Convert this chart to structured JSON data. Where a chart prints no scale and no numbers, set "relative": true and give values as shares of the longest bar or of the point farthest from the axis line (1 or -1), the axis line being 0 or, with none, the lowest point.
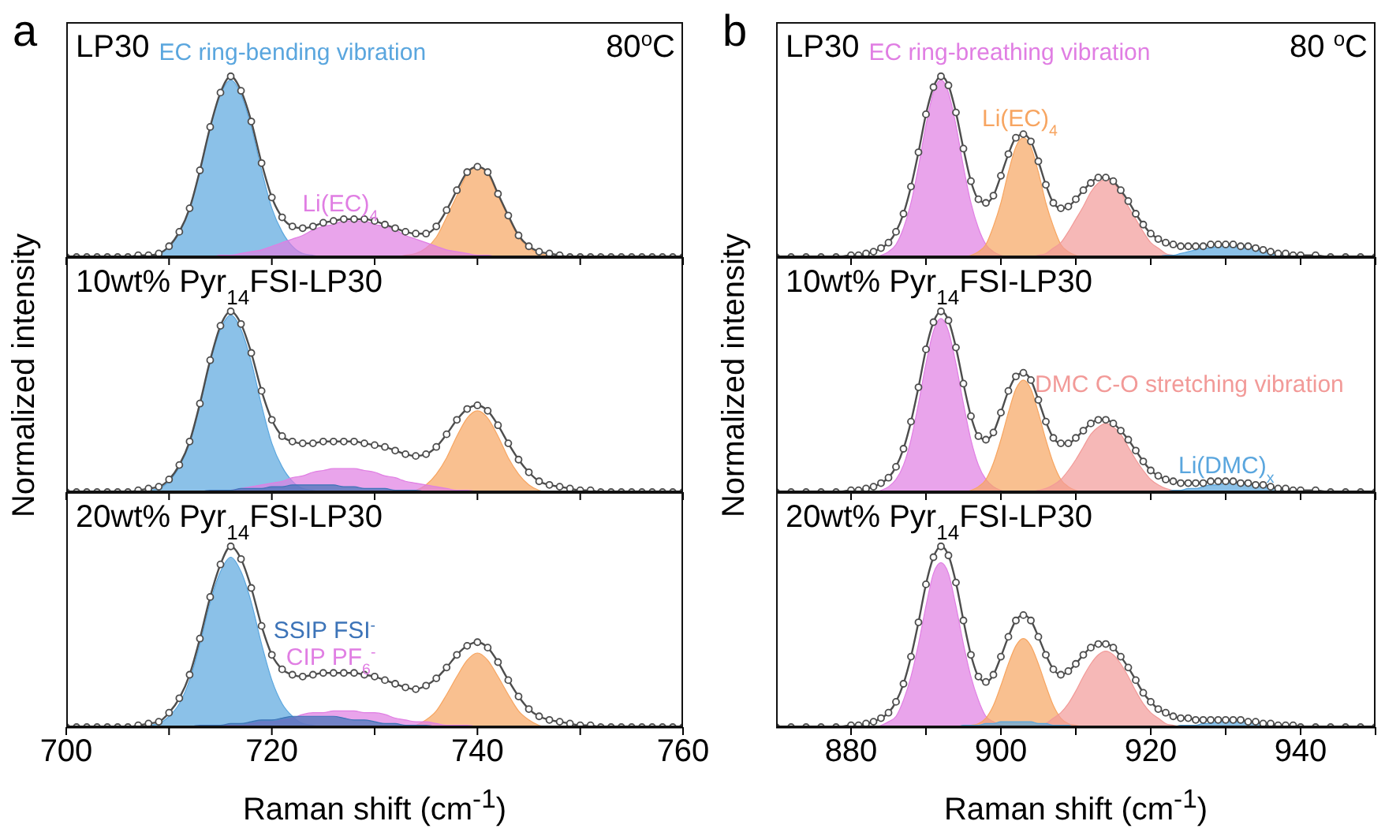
{
  "chart_data": [
    {
      "type": "line",
      "title": "LP30",
      "annotations": [
        "a",
        "80$^{o}$C"
      ],
      "relative": true,
      "tick_labels": false,
      "xlim": [
        700,
        760
      ],
      "xticks": [
        700,
        {
          "value": 710,
          "label": null
        },
        720,
        {
          "value": 730,
          "label": null
        },
        740,
        {
          "value": 750,
          "label": null
        },
        760
      ],
      "x": [
        700,
        701,
        702,
        703,
        704,
        705,
        706,
        707,
        708,
        709,
        710,
        711,
        712,
        713,
        714,
        715,
        716,
        717,
        718,
        719,
        720,
        721,
        722,
        723,
        724,
        725,
        726,
        727,
        728,
        729,
        730,
        731,
        732,
        733,
        734,
        735,
        736,
        737,
        738,
        739,
        740,
        741,
        742,
        743,
        744,
        745,
        746,
        747,
        748,
        749,
        750,
        751,
        752,
        753,
        754,
        755,
        756,
        757,
        758,
        759,
        760
      ],
      "series": [
        {
          "type": "area",
          "name": "EC ring-bending vibration",
          "color": "#5aa6de",
          "x": [
            707,
            708,
            709,
            710,
            711,
            712,
            713,
            714,
            715,
            716,
            717,
            718,
            719,
            720,
            721,
            722,
            723,
            724,
            725
          ],
          "values": [
            0,
            0.01,
            0.02,
            0.06,
            0.14,
            0.27,
            0.48,
            0.72,
            0.9,
            0.98,
            0.9,
            0.72,
            0.48,
            0.27,
            0.14,
            0.06,
            0.02,
            0.01,
            0
          ]
        },
        {
          "type": "area",
          "color": "#f7a561",
          "x": [
            732,
            733,
            734,
            735,
            736,
            737,
            738,
            739,
            740,
            741,
            742,
            743,
            744,
            745,
            746,
            747,
            748
          ],
          "values": [
            0,
            0.01,
            0.02,
            0.05,
            0.11,
            0.22,
            0.34,
            0.46,
            0.5,
            0.46,
            0.34,
            0.22,
            0.11,
            0.05,
            0.02,
            0.01,
            0
          ]
        },
        {
          "type": "area",
          "name": "Li(EC)$_{4}$",
          "color": "#e07ee3",
          "x": [
            713,
            714,
            715,
            716,
            717,
            718,
            719,
            720,
            721,
            722,
            723,
            724,
            725,
            726,
            727,
            728,
            729,
            730,
            731,
            732,
            733,
            734,
            735,
            736,
            737,
            738,
            739,
            740,
            741,
            742,
            743
          ],
          "values": [
            0,
            0,
            0.01,
            0.01,
            0.02,
            0.03,
            0.04,
            0.06,
            0.08,
            0.1,
            0.12,
            0.15,
            0.17,
            0.18,
            0.2,
            0.2,
            0.2,
            0.18,
            0.17,
            0.15,
            0.12,
            0.1,
            0.08,
            0.06,
            0.04,
            0.03,
            0.02,
            0.01,
            0.01,
            0,
            0
          ]
        },
        {
          "color": "#4d4d4d",
          "marker": "circle",
          "values": [
            0,
            0,
            0,
            0,
            0,
            0,
            0,
            0.01,
            0.01,
            0.02,
            0.06,
            0.14,
            0.27,
            0.48,
            0.72,
            0.91,
            1,
            0.92,
            0.75,
            0.52,
            0.33,
            0.22,
            0.17,
            0.16,
            0.17,
            0.19,
            0.2,
            0.21,
            0.21,
            0.21,
            0.2,
            0.18,
            0.16,
            0.14,
            0.13,
            0.13,
            0.17,
            0.26,
            0.37,
            0.47,
            0.5,
            0.47,
            0.35,
            0.23,
            0.12,
            0.06,
            0.03,
            0.02,
            0.01,
            0,
            0,
            0,
            0,
            0,
            0,
            0,
            0,
            0,
            0,
            0,
            0
          ]
        }
      ]
    },
    {
      "type": "line",
      "title": "10wt% Pyr$_{14}$FSI-LP30",
      "ylabel": "Normalized intensity",
      "relative": true,
      "tick_labels": false,
      "xlim": [
        700,
        760
      ],
      "xticks": [
        700,
        {
          "value": 710,
          "label": null
        },
        720,
        {
          "value": 730,
          "label": null
        },
        740,
        {
          "value": 750,
          "label": null
        },
        760
      ],
      "x": [
        700,
        701,
        702,
        703,
        704,
        705,
        706,
        707,
        708,
        709,
        710,
        711,
        712,
        713,
        714,
        715,
        716,
        717,
        718,
        719,
        720,
        721,
        722,
        723,
        724,
        725,
        726,
        727,
        728,
        729,
        730,
        731,
        732,
        733,
        734,
        735,
        736,
        737,
        738,
        739,
        740,
        741,
        742,
        743,
        744,
        745,
        746,
        747,
        748,
        749,
        750,
        751,
        752,
        753,
        754,
        755,
        756,
        757,
        758,
        759,
        760
      ],
      "series": [
        {
          "type": "area",
          "color": "#5aa6de",
          "x": [
            707,
            708,
            709,
            710,
            711,
            712,
            713,
            714,
            715,
            716,
            717,
            718,
            719,
            720,
            721,
            722,
            723,
            724,
            725
          ],
          "values": [
            0,
            0.01,
            0.02,
            0.06,
            0.14,
            0.27,
            0.48,
            0.72,
            0.9,
            0.98,
            0.9,
            0.72,
            0.48,
            0.27,
            0.14,
            0.06,
            0.02,
            0.01,
            0
          ]
        },
        {
          "type": "area",
          "color": "#f7a561",
          "x": [
            732,
            733,
            734,
            735,
            736,
            737,
            738,
            739,
            740,
            741,
            742,
            743,
            744,
            745,
            746,
            747,
            748
          ],
          "values": [
            0,
            0,
            0.01,
            0.04,
            0.1,
            0.19,
            0.31,
            0.41,
            0.45,
            0.41,
            0.31,
            0.19,
            0.1,
            0.04,
            0.01,
            0,
            0
          ]
        },
        {
          "type": "area",
          "color": "#e07ee3",
          "x": [
            714,
            715,
            716,
            717,
            718,
            719,
            720,
            721,
            722,
            723,
            724,
            725,
            726,
            727,
            728,
            729,
            730,
            731,
            732,
            733,
            734,
            735,
            736,
            737,
            738,
            739,
            740
          ],
          "values": [
            0,
            0.01,
            0.01,
            0.02,
            0.03,
            0.04,
            0.05,
            0.06,
            0.08,
            0.09,
            0.11,
            0.12,
            0.13,
            0.13,
            0.13,
            0.12,
            0.11,
            0.09,
            0.08,
            0.06,
            0.05,
            0.04,
            0.03,
            0.02,
            0.01,
            0.01,
            0
          ]
        },
        {
          "type": "area",
          "color": "#3d74b8",
          "x": [
            713,
            714,
            715,
            716,
            717,
            718,
            719,
            720,
            721,
            722,
            723,
            724,
            725,
            726,
            727,
            728,
            729,
            730,
            731,
            732,
            733,
            734,
            735
          ],
          "values": [
            0,
            0.01,
            0.01,
            0.01,
            0.02,
            0.02,
            0.02,
            0.03,
            0.03,
            0.04,
            0.04,
            0.04,
            0.04,
            0.04,
            0.03,
            0.03,
            0.02,
            0.02,
            0.02,
            0.01,
            0.01,
            0.01,
            0
          ]
        },
        {
          "color": "#4d4d4d",
          "marker": "circle",
          "values": [
            0,
            0,
            0,
            0,
            0,
            0,
            0,
            0.01,
            0.02,
            0.03,
            0.07,
            0.15,
            0.28,
            0.49,
            0.73,
            0.92,
            1,
            0.93,
            0.77,
            0.56,
            0.4,
            0.31,
            0.28,
            0.27,
            0.27,
            0.28,
            0.28,
            0.28,
            0.28,
            0.27,
            0.26,
            0.25,
            0.23,
            0.21,
            0.2,
            0.21,
            0.25,
            0.32,
            0.4,
            0.46,
            0.48,
            0.45,
            0.37,
            0.27,
            0.18,
            0.11,
            0.06,
            0.04,
            0.03,
            0.02,
            0.01,
            0.01,
            0,
            0,
            0,
            0,
            0,
            0,
            0,
            0,
            0
          ]
        }
      ]
    },
    {
      "type": "line",
      "title": "20wt%  Pyr$_{14}$FSI-LP30",
      "xlabel": "Raman shift (cm$^{-1}$)",
      "relative": true,
      "xlim": [
        700,
        760
      ],
      "xticks": [
        700,
        {
          "value": 710,
          "label": null
        },
        720,
        {
          "value": 730,
          "label": null
        },
        740,
        {
          "value": 750,
          "label": null
        },
        760
      ],
      "x": [
        700,
        701,
        702,
        703,
        704,
        705,
        706,
        707,
        708,
        709,
        710,
        711,
        712,
        713,
        714,
        715,
        716,
        717,
        718,
        719,
        720,
        721,
        722,
        723,
        724,
        725,
        726,
        727,
        728,
        729,
        730,
        731,
        732,
        733,
        734,
        735,
        736,
        737,
        738,
        739,
        740,
        741,
        742,
        743,
        744,
        745,
        746,
        747,
        748,
        749,
        750,
        751,
        752,
        753,
        754,
        755,
        756,
        757,
        758,
        759,
        760
      ],
      "series": [
        {
          "type": "area",
          "color": "#5aa6de",
          "x": [
            707,
            708,
            709,
            710,
            711,
            712,
            713,
            714,
            715,
            716,
            717,
            718,
            719,
            720,
            721,
            722,
            723,
            724,
            725
          ],
          "values": [
            0,
            0.01,
            0.02,
            0.06,
            0.13,
            0.26,
            0.46,
            0.69,
            0.86,
            0.94,
            0.86,
            0.69,
            0.46,
            0.26,
            0.13,
            0.06,
            0.02,
            0.01,
            0
          ]
        },
        {
          "type": "area",
          "color": "#f7a561",
          "x": [
            732,
            733,
            734,
            735,
            736,
            737,
            738,
            739,
            740,
            741,
            742,
            743,
            744,
            745,
            746,
            747,
            748
          ],
          "values": [
            0,
            0,
            0.01,
            0.04,
            0.09,
            0.18,
            0.28,
            0.37,
            0.41,
            0.37,
            0.28,
            0.18,
            0.09,
            0.04,
            0.01,
            0,
            0
          ]
        },
        {
          "type": "area",
          "name": "CIP PF$_{6}$$^{-}$",
          "color": "#e07ee3",
          "x": [
            714,
            715,
            716,
            717,
            718,
            719,
            720,
            721,
            722,
            723,
            724,
            725,
            726,
            727,
            728,
            729,
            730,
            731,
            732,
            733,
            734,
            735,
            736,
            737,
            738,
            739,
            740
          ],
          "values": [
            0,
            0.01,
            0.01,
            0.01,
            0.02,
            0.03,
            0.03,
            0.04,
            0.05,
            0.07,
            0.08,
            0.08,
            0.09,
            0.09,
            0.09,
            0.08,
            0.08,
            0.07,
            0.05,
            0.04,
            0.03,
            0.03,
            0.02,
            0.01,
            0.01,
            0.01,
            0
          ]
        },
        {
          "type": "area",
          "name": "SSIP FSI$^{-}$",
          "color": "#3d74b8",
          "x": [
            712,
            713,
            714,
            715,
            716,
            717,
            718,
            719,
            720,
            721,
            722,
            723,
            724,
            725,
            726,
            727,
            728,
            729,
            730,
            731,
            732,
            733,
            734,
            735,
            736
          ],
          "values": [
            0,
            0.01,
            0.01,
            0.01,
            0.02,
            0.02,
            0.03,
            0.04,
            0.04,
            0.05,
            0.06,
            0.06,
            0.06,
            0.06,
            0.06,
            0.05,
            0.04,
            0.04,
            0.03,
            0.02,
            0.02,
            0.01,
            0.01,
            0.01,
            0
          ]
        },
        {
          "color": "#4d4d4d",
          "marker": "circle",
          "values": [
            0,
            0,
            0,
            0,
            0,
            0,
            0,
            0.01,
            0.02,
            0.03,
            0.08,
            0.16,
            0.29,
            0.49,
            0.72,
            0.9,
            1,
            0.93,
            0.77,
            0.56,
            0.4,
            0.32,
            0.29,
            0.28,
            0.29,
            0.3,
            0.3,
            0.3,
            0.3,
            0.29,
            0.28,
            0.26,
            0.24,
            0.22,
            0.21,
            0.23,
            0.27,
            0.33,
            0.4,
            0.45,
            0.47,
            0.44,
            0.36,
            0.26,
            0.17,
            0.1,
            0.06,
            0.04,
            0.03,
            0.02,
            0.01,
            0.01,
            0,
            0,
            0,
            0,
            0,
            0,
            0,
            0,
            0
          ]
        }
      ]
    },
    {
      "type": "line",
      "title": "LP30",
      "annotations": [
        "b",
        "80 $^{o}$C"
      ],
      "relative": true,
      "tick_labels": false,
      "xlim": [
        870,
        950
      ],
      "xticks": [
        880,
        {
          "value": 890,
          "label": null
        },
        900,
        {
          "value": 910,
          "label": null
        },
        920,
        {
          "value": 930,
          "label": null
        },
        940,
        {
          "value": 950,
          "label": null
        }
      ],
      "x": [
        870,
        872,
        874,
        876,
        878,
        880,
        881,
        882,
        883,
        884,
        885,
        886,
        887,
        888,
        889,
        890,
        891,
        892,
        893,
        894,
        895,
        896,
        897,
        898,
        899,
        900,
        901,
        902,
        903,
        904,
        905,
        906,
        907,
        908,
        909,
        910,
        911,
        912,
        913,
        914,
        915,
        916,
        917,
        918,
        919,
        920,
        921,
        922,
        923,
        924,
        925,
        926,
        927,
        928,
        929,
        930,
        931,
        932,
        933,
        934,
        935,
        936,
        937,
        938,
        939,
        940,
        942,
        944,
        946,
        948,
        950
      ],
      "series": [
        {
          "type": "area",
          "name": "EC ring-breathing vibration",
          "color": "#e07ee3",
          "x": [
            883,
            884,
            885,
            886,
            887,
            888,
            889,
            890,
            891,
            892,
            893,
            894,
            895,
            896,
            897,
            898,
            899,
            900,
            901
          ],
          "values": [
            0,
            0.01,
            0.03,
            0.07,
            0.16,
            0.3,
            0.5,
            0.73,
            0.91,
            0.98,
            0.91,
            0.73,
            0.5,
            0.3,
            0.16,
            0.07,
            0.03,
            0.01,
            0
          ]
        },
        {
          "type": "area",
          "name": "Li(EC)$_{4}$",
          "color": "#f7a561",
          "x": [
            895,
            896,
            897,
            898,
            899,
            900,
            901,
            902,
            903,
            904,
            905,
            906,
            907,
            908,
            909,
            910,
            911
          ],
          "values": [
            0,
            0.01,
            0.03,
            0.07,
            0.17,
            0.3,
            0.47,
            0.61,
            0.66,
            0.61,
            0.47,
            0.3,
            0.17,
            0.07,
            0.03,
            0.01,
            0
          ]
        },
        {
          "type": "area",
          "color": "#f29a98",
          "x": [
            904,
            905,
            906,
            907,
            908,
            909,
            910,
            911,
            912,
            913,
            914,
            915,
            916,
            917,
            918,
            919,
            920,
            921,
            922,
            923,
            924
          ],
          "values": [
            0,
            0.01,
            0.02,
            0.05,
            0.08,
            0.14,
            0.21,
            0.28,
            0.36,
            0.41,
            0.43,
            0.41,
            0.36,
            0.28,
            0.21,
            0.14,
            0.08,
            0.05,
            0.02,
            0.01,
            0
          ]
        },
        {
          "type": "area",
          "color": "#5aa6de",
          "x": [
            921,
            922,
            923,
            924,
            925,
            926,
            927,
            928,
            929,
            930,
            931,
            932,
            933,
            934,
            935,
            936,
            937,
            938,
            939
          ],
          "values": [
            0,
            0.01,
            0.01,
            0.02,
            0.03,
            0.04,
            0.05,
            0.05,
            0.06,
            0.06,
            0.06,
            0.05,
            0.05,
            0.04,
            0.03,
            0.02,
            0.01,
            0.01,
            0
          ]
        },
        {
          "color": "#4d4d4d",
          "marker": "circle",
          "values": [
            0,
            0,
            0,
            0,
            0,
            0.01,
            0.01,
            0.02,
            0.03,
            0.05,
            0.08,
            0.14,
            0.24,
            0.39,
            0.58,
            0.79,
            0.94,
            1,
            0.95,
            0.8,
            0.6,
            0.42,
            0.32,
            0.3,
            0.34,
            0.45,
            0.57,
            0.66,
            0.68,
            0.64,
            0.53,
            0.4,
            0.3,
            0.27,
            0.28,
            0.32,
            0.37,
            0.41,
            0.44,
            0.44,
            0.42,
            0.37,
            0.31,
            0.24,
            0.18,
            0.13,
            0.1,
            0.08,
            0.07,
            0.06,
            0.06,
            0.06,
            0.06,
            0.07,
            0.07,
            0.07,
            0.07,
            0.06,
            0.06,
            0.05,
            0.04,
            0.03,
            0.02,
            0.02,
            0.01,
            0.01,
            0.01,
            0,
            0,
            0,
            0
          ]
        }
      ]
    },
    {
      "type": "line",
      "title": "10wt% Pyr$_{14}$FSI-LP30",
      "ylabel": "Normalized intensity",
      "relative": true,
      "tick_labels": false,
      "xlim": [
        870,
        950
      ],
      "xticks": [
        880,
        {
          "value": 890,
          "label": null
        },
        900,
        {
          "value": 910,
          "label": null
        },
        920,
        {
          "value": 930,
          "label": null
        },
        940,
        {
          "value": 950,
          "label": null
        }
      ],
      "x": [
        870,
        872,
        874,
        876,
        878,
        880,
        881,
        882,
        883,
        884,
        885,
        886,
        887,
        888,
        889,
        890,
        891,
        892,
        893,
        894,
        895,
        896,
        897,
        898,
        899,
        900,
        901,
        902,
        903,
        904,
        905,
        906,
        907,
        908,
        909,
        910,
        911,
        912,
        913,
        914,
        915,
        916,
        917,
        918,
        919,
        920,
        921,
        922,
        923,
        924,
        925,
        926,
        927,
        928,
        929,
        930,
        931,
        932,
        933,
        934,
        935,
        936,
        937,
        938,
        939,
        940,
        942,
        944,
        946,
        948,
        950
      ],
      "series": [
        {
          "type": "area",
          "color": "#e07ee3",
          "x": [
            883,
            884,
            885,
            886,
            887,
            888,
            889,
            890,
            891,
            892,
            893,
            894,
            895,
            896,
            897,
            898,
            899,
            900,
            901
          ],
          "values": [
            0,
            0.01,
            0.03,
            0.07,
            0.15,
            0.29,
            0.49,
            0.71,
            0.89,
            0.96,
            0.89,
            0.71,
            0.49,
            0.29,
            0.15,
            0.07,
            0.03,
            0.01,
            0
          ]
        },
        {
          "type": "area",
          "color": "#f7a561",
          "x": [
            895,
            896,
            897,
            898,
            899,
            900,
            901,
            902,
            903,
            904,
            905,
            906,
            907,
            908,
            909,
            910,
            911
          ],
          "values": [
            0,
            0.01,
            0.03,
            0.07,
            0.16,
            0.29,
            0.44,
            0.57,
            0.62,
            0.57,
            0.44,
            0.29,
            0.16,
            0.07,
            0.03,
            0.01,
            0
          ]
        },
        {
          "type": "area",
          "name": "DMC C-O stretching vibration",
          "color": "#f29a98",
          "x": [
            904,
            905,
            906,
            907,
            908,
            909,
            910,
            911,
            912,
            913,
            914,
            915,
            916,
            917,
            918,
            919,
            920,
            921,
            922,
            923,
            924
          ],
          "values": [
            0,
            0.01,
            0.02,
            0.04,
            0.07,
            0.12,
            0.18,
            0.25,
            0.32,
            0.36,
            0.38,
            0.36,
            0.32,
            0.25,
            0.18,
            0.12,
            0.07,
            0.04,
            0.02,
            0.01,
            0
          ]
        },
        {
          "type": "area",
          "name": "Li(DMC)$_{x}$",
          "color": "#5aa6de",
          "x": [
            922,
            923,
            924,
            925,
            926,
            927,
            928,
            929,
            930,
            931,
            932,
            933,
            934,
            935,
            936,
            937,
            938,
            939,
            940
          ],
          "values": [
            0,
            0.01,
            0.01,
            0.02,
            0.02,
            0.03,
            0.04,
            0.04,
            0.05,
            0.05,
            0.05,
            0.04,
            0.04,
            0.03,
            0.02,
            0.02,
            0.01,
            0.01,
            0
          ]
        },
        {
          "color": "#4d4d4d",
          "marker": "circle",
          "values": [
            0,
            0,
            0,
            0,
            0,
            0.01,
            0.01,
            0.02,
            0.03,
            0.05,
            0.08,
            0.14,
            0.24,
            0.39,
            0.58,
            0.79,
            0.94,
            1,
            0.95,
            0.8,
            0.6,
            0.42,
            0.31,
            0.29,
            0.33,
            0.44,
            0.56,
            0.64,
            0.66,
            0.62,
            0.51,
            0.39,
            0.3,
            0.27,
            0.27,
            0.3,
            0.34,
            0.38,
            0.4,
            0.4,
            0.38,
            0.34,
            0.29,
            0.23,
            0.17,
            0.12,
            0.09,
            0.07,
            0.06,
            0.05,
            0.05,
            0.05,
            0.05,
            0.06,
            0.06,
            0.06,
            0.06,
            0.05,
            0.05,
            0.04,
            0.04,
            0.03,
            0.02,
            0.02,
            0.01,
            0.01,
            0.01,
            0,
            0,
            0,
            0
          ]
        }
      ]
    },
    {
      "type": "line",
      "title": "20wt% Pyr$_{14}$FSI-LP30",
      "xlabel": "Raman shift (cm$^{-1}$)",
      "relative": true,
      "xlim": [
        870,
        950
      ],
      "xticks": [
        880,
        {
          "value": 890,
          "label": null
        },
        900,
        {
          "value": 910,
          "label": null
        },
        920,
        {
          "value": 930,
          "label": null
        },
        940,
        {
          "value": 950,
          "label": null
        }
      ],
      "x": [
        870,
        872,
        874,
        876,
        878,
        880,
        881,
        882,
        883,
        884,
        885,
        886,
        887,
        888,
        889,
        890,
        891,
        892,
        893,
        894,
        895,
        896,
        897,
        898,
        899,
        900,
        901,
        902,
        903,
        904,
        905,
        906,
        907,
        908,
        909,
        910,
        911,
        912,
        913,
        914,
        915,
        916,
        917,
        918,
        919,
        920,
        921,
        922,
        923,
        924,
        925,
        926,
        927,
        928,
        929,
        930,
        931,
        932,
        933,
        934,
        935,
        936,
        937,
        938,
        939,
        940,
        942,
        944,
        946,
        948,
        950
      ],
      "series": [
        {
          "type": "area",
          "color": "#e07ee3",
          "x": [
            883,
            884,
            885,
            886,
            887,
            888,
            889,
            890,
            891,
            892,
            893,
            894,
            895,
            896,
            897,
            898,
            899,
            900,
            901
          ],
          "values": [
            0,
            0.01,
            0.03,
            0.06,
            0.15,
            0.28,
            0.46,
            0.67,
            0.85,
            0.91,
            0.85,
            0.67,
            0.46,
            0.28,
            0.15,
            0.06,
            0.03,
            0.01,
            0
          ]
        },
        {
          "type": "area",
          "color": "#f7a561",
          "x": [
            895,
            896,
            897,
            898,
            899,
            900,
            901,
            902,
            903,
            904,
            905,
            906,
            907,
            908,
            909,
            910,
            911
          ],
          "values": [
            0,
            0.01,
            0.02,
            0.05,
            0.12,
            0.23,
            0.35,
            0.45,
            0.49,
            0.45,
            0.35,
            0.23,
            0.12,
            0.05,
            0.02,
            0.01,
            0
          ]
        },
        {
          "type": "area",
          "color": "#f29a98",
          "x": [
            904,
            905,
            906,
            907,
            908,
            909,
            910,
            911,
            912,
            913,
            914,
            915,
            916,
            917,
            918,
            919,
            920,
            921,
            922,
            923,
            924
          ],
          "values": [
            0,
            0.01,
            0.02,
            0.05,
            0.08,
            0.13,
            0.2,
            0.28,
            0.35,
            0.4,
            0.42,
            0.4,
            0.35,
            0.28,
            0.2,
            0.13,
            0.08,
            0.05,
            0.02,
            0.01,
            0
          ]
        },
        {
          "type": "area",
          "color": "#5aa6de",
          "x": [
            893,
            894,
            895,
            896,
            897,
            898,
            899,
            900,
            901,
            902,
            903,
            904,
            905,
            906,
            907,
            908,
            909,
            910,
            911
          ],
          "values": [
            0,
            0,
            0.01,
            0.01,
            0.01,
            0.02,
            0.02,
            0.03,
            0.03,
            0.03,
            0.03,
            0.03,
            0.02,
            0.02,
            0.01,
            0.01,
            0.01,
            0,
            0
          ]
        },
        {
          "type": "area",
          "color": "#5aa6de",
          "x": [
            922,
            923,
            924,
            925,
            926,
            927,
            928,
            929,
            930,
            931,
            932,
            933,
            934,
            935,
            936,
            937,
            938,
            939,
            940
          ],
          "values": [
            0,
            0,
            0.01,
            0.01,
            0.01,
            0.02,
            0.02,
            0.03,
            0.03,
            0.03,
            0.03,
            0.03,
            0.02,
            0.02,
            0.01,
            0.01,
            0.01,
            0,
            0
          ]
        },
        {
          "color": "#4d4d4d",
          "marker": "circle",
          "values": [
            0,
            0,
            0,
            0,
            0,
            0.01,
            0.01,
            0.02,
            0.03,
            0.05,
            0.08,
            0.14,
            0.24,
            0.39,
            0.58,
            0.79,
            0.94,
            1,
            0.95,
            0.8,
            0.59,
            0.4,
            0.28,
            0.25,
            0.29,
            0.39,
            0.5,
            0.59,
            0.62,
            0.59,
            0.5,
            0.4,
            0.32,
            0.29,
            0.31,
            0.35,
            0.4,
            0.44,
            0.46,
            0.46,
            0.44,
            0.39,
            0.33,
            0.26,
            0.19,
            0.14,
            0.1,
            0.08,
            0.06,
            0.05,
            0.05,
            0.04,
            0.04,
            0.04,
            0.04,
            0.04,
            0.04,
            0.04,
            0.03,
            0.03,
            0.02,
            0.02,
            0.01,
            0.01,
            0.01,
            0,
            0,
            0,
            0,
            0,
            0
          ]
        }
      ]
    }
  ]
}
